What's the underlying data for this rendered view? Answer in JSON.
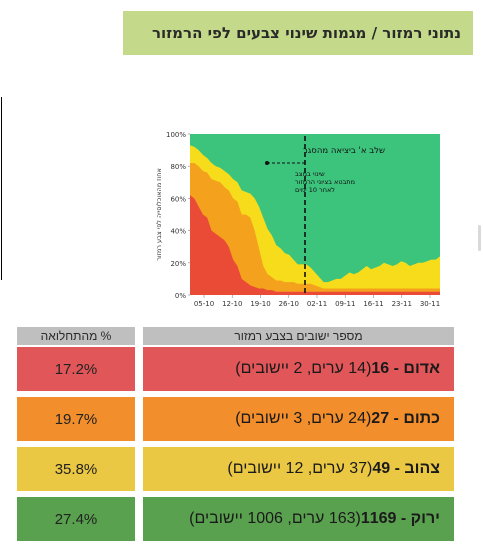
{
  "header": {
    "title": "נתוני רמזור / מגמות שינוי צבעים לפי הרמזור"
  },
  "table": {
    "pct_header": "% מהתחלואה",
    "count_header": "מספר ישובים בצבע רמזור",
    "rows": [
      {
        "color_name": "אדום - 16",
        "detail": " (14 ערים, 2 יישובים)",
        "pct": "17.2%",
        "color": "#e15759"
      },
      {
        "color_name": "כתום - 27",
        "detail": " (24 ערים, 3 יישובים)",
        "pct": "19.7%",
        "color": "#f28e2b"
      },
      {
        "color_name": "צהוב - 49",
        "detail": " (37 ערים, 12 יישובים)",
        "pct": "35.8%",
        "color": "#ebc844"
      },
      {
        "color_name": "ירוק - 1169",
        "detail": " (163 ערים, 1006 יישובים)",
        "pct": "27.4%",
        "color": "#59a14f"
      }
    ]
  },
  "chart_data": {
    "type": "area",
    "ylabel": "אחוז מהאוכלוסייה לפי צבע רמזור",
    "ylim": [
      0,
      100
    ],
    "y_ticks": [
      "0%",
      "20%",
      "40%",
      "60%",
      "80%",
      "100%"
    ],
    "x_ticks": [
      "05-10",
      "12-10",
      "19-10",
      "26-10",
      "02-11",
      "09-11",
      "16-11",
      "23-11",
      "30-11"
    ],
    "annotation": "שלב א' ביציאה מהסגר",
    "annotation_note": "שינוי במצב מתבטא בציוני הרמזור לאחר 10 ימים",
    "marker_x": "27-10",
    "colors": {
      "red": "#ea4b36",
      "orange": "#f4a11d",
      "yellow": "#f7dc1c",
      "green": "#3cc47c"
    },
    "series": [
      {
        "color": "red",
        "values": [
          62,
          60,
          55,
          50,
          48,
          40,
          38,
          36,
          34,
          30,
          22,
          18,
          10,
          8,
          6,
          5,
          4,
          4,
          3,
          3,
          2,
          2,
          2,
          2,
          2,
          2,
          2,
          2,
          2,
          2,
          2,
          2,
          2,
          2,
          2,
          2,
          2,
          2,
          2,
          2,
          2,
          2,
          2,
          2,
          2,
          2,
          2,
          2,
          2,
          2,
          2,
          2,
          2,
          2,
          2,
          2,
          2,
          2,
          2
        ]
      },
      {
        "color": "orange",
        "values": [
          20,
          22,
          25,
          27,
          28,
          32,
          33,
          34,
          33,
          35,
          38,
          40,
          40,
          42,
          42,
          35,
          25,
          14,
          10,
          8,
          7,
          7,
          6,
          6,
          6,
          5,
          5,
          5,
          5,
          4,
          3,
          2,
          2,
          2,
          2,
          2,
          2,
          2,
          2,
          2,
          2,
          2,
          2,
          2,
          2,
          2,
          2,
          2,
          2,
          2,
          2,
          2,
          2,
          2,
          2,
          2,
          2,
          2,
          2
        ]
      },
      {
        "color": "yellow",
        "values": [
          11,
          10,
          10,
          10,
          9,
          10,
          9,
          9,
          10,
          10,
          12,
          12,
          15,
          14,
          15,
          20,
          26,
          30,
          28,
          26,
          22,
          20,
          18,
          17,
          14,
          12,
          12,
          12,
          10,
          8,
          6,
          4,
          4,
          5,
          6,
          6,
          8,
          10,
          9,
          10,
          12,
          14,
          12,
          13,
          14,
          16,
          15,
          14,
          15,
          17,
          16,
          14,
          15,
          16,
          16,
          17,
          18,
          18,
          20
        ]
      }
    ]
  }
}
